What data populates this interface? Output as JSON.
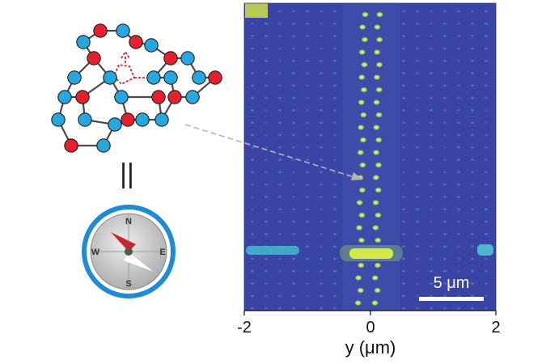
{
  "colors": {
    "atom_red": "#e4202d",
    "atom_blue": "#27a6e0",
    "image_background": "#3a44a4",
    "spot_yellow": "#f3ee38",
    "compass_ring": "#1f8ad6"
  },
  "axis": {
    "xlabel": "y (μm)",
    "ticks": [
      "-2",
      "0",
      "2"
    ]
  },
  "scalebar": {
    "label": "5 μm"
  },
  "compass": {
    "n": "N",
    "s": "S",
    "e": "E",
    "w": "W"
  },
  "equivalence_symbol": "||",
  "icons": [
    "honeycomb-lattice-icon",
    "compass-icon"
  ]
}
